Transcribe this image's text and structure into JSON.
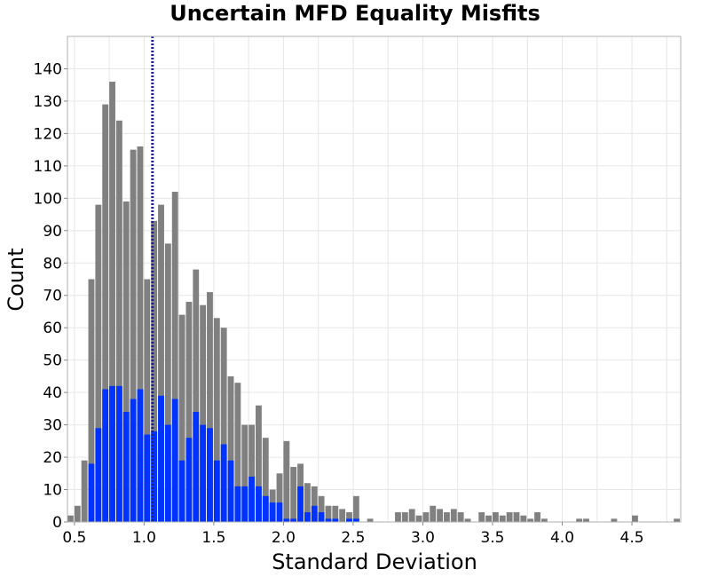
{
  "chart_data": {
    "type": "bar",
    "title": "Uncertain MFD Equality Misfits",
    "xlabel": "Standard Deviation",
    "ylabel": "Count",
    "xlim": [
      0.45,
      4.85
    ],
    "ylim": [
      0,
      150
    ],
    "bin_width": 0.05,
    "x_ticks": [
      "0.5",
      "1.0",
      "1.5",
      "2.0",
      "2.5",
      "3.0",
      "3.5",
      "4.0",
      "4.5"
    ],
    "x_tick_values": [
      0.5,
      1.0,
      1.5,
      2.0,
      2.5,
      3.0,
      3.5,
      4.0,
      4.5
    ],
    "y_ticks": [
      "0",
      "10",
      "20",
      "30",
      "40",
      "50",
      "60",
      "70",
      "80",
      "90",
      "100",
      "110",
      "120",
      "130",
      "140"
    ],
    "y_tick_values": [
      0,
      10,
      20,
      30,
      40,
      50,
      60,
      70,
      80,
      90,
      100,
      110,
      120,
      130,
      140
    ],
    "grid": true,
    "reference_line": {
      "x": 1.06,
      "color": "#1a237e",
      "style": "dotted"
    },
    "series": [
      {
        "color": "#808080",
        "bins": [
          [
            0.45,
            2
          ],
          [
            0.5,
            5
          ],
          [
            0.55,
            19
          ],
          [
            0.6,
            75
          ],
          [
            0.65,
            98
          ],
          [
            0.7,
            129
          ],
          [
            0.75,
            136
          ],
          [
            0.8,
            124
          ],
          [
            0.85,
            99
          ],
          [
            0.9,
            115
          ],
          [
            0.95,
            116
          ],
          [
            1.0,
            75
          ],
          [
            1.05,
            93
          ],
          [
            1.1,
            98
          ],
          [
            1.15,
            86
          ],
          [
            1.2,
            102
          ],
          [
            1.25,
            64
          ],
          [
            1.3,
            68
          ],
          [
            1.35,
            78
          ],
          [
            1.4,
            67
          ],
          [
            1.45,
            71
          ],
          [
            1.5,
            63
          ],
          [
            1.55,
            60
          ],
          [
            1.6,
            45
          ],
          [
            1.65,
            43
          ],
          [
            1.7,
            30
          ],
          [
            1.75,
            30
          ],
          [
            1.8,
            36
          ],
          [
            1.85,
            26
          ],
          [
            1.9,
            10
          ],
          [
            1.95,
            15
          ],
          [
            2.0,
            25
          ],
          [
            2.05,
            17
          ],
          [
            2.1,
            18
          ],
          [
            2.15,
            12
          ],
          [
            2.2,
            11
          ],
          [
            2.25,
            8
          ],
          [
            2.3,
            5
          ],
          [
            2.35,
            5
          ],
          [
            2.4,
            4
          ],
          [
            2.45,
            3
          ],
          [
            2.5,
            8
          ],
          [
            2.6,
            1
          ],
          [
            2.8,
            3
          ],
          [
            2.85,
            3
          ],
          [
            2.9,
            4
          ],
          [
            2.95,
            2
          ],
          [
            3.0,
            3
          ],
          [
            3.05,
            5
          ],
          [
            3.1,
            4
          ],
          [
            3.15,
            3
          ],
          [
            3.2,
            4
          ],
          [
            3.25,
            3
          ],
          [
            3.3,
            1
          ],
          [
            3.4,
            3
          ],
          [
            3.45,
            2
          ],
          [
            3.5,
            3
          ],
          [
            3.55,
            2
          ],
          [
            3.6,
            3
          ],
          [
            3.65,
            3
          ],
          [
            3.7,
            2
          ],
          [
            3.75,
            1
          ],
          [
            3.8,
            3
          ],
          [
            3.85,
            1
          ],
          [
            4.1,
            1
          ],
          [
            4.15,
            1
          ],
          [
            4.35,
            1
          ],
          [
            4.5,
            2
          ],
          [
            4.8,
            1
          ]
        ]
      },
      {
        "color": "#0033ff",
        "bins": [
          [
            0.6,
            18
          ],
          [
            0.65,
            29
          ],
          [
            0.7,
            41
          ],
          [
            0.75,
            42
          ],
          [
            0.8,
            42
          ],
          [
            0.85,
            34
          ],
          [
            0.9,
            38
          ],
          [
            0.95,
            41
          ],
          [
            1.0,
            27
          ],
          [
            1.05,
            28
          ],
          [
            1.1,
            39
          ],
          [
            1.15,
            30
          ],
          [
            1.2,
            38
          ],
          [
            1.25,
            19
          ],
          [
            1.3,
            26
          ],
          [
            1.35,
            34
          ],
          [
            1.4,
            30
          ],
          [
            1.45,
            29
          ],
          [
            1.5,
            19
          ],
          [
            1.55,
            24
          ],
          [
            1.6,
            19
          ],
          [
            1.65,
            11
          ],
          [
            1.7,
            11
          ],
          [
            1.75,
            14
          ],
          [
            1.8,
            11
          ],
          [
            1.85,
            8
          ],
          [
            1.9,
            6
          ],
          [
            1.95,
            6
          ],
          [
            2.0,
            1
          ],
          [
            2.05,
            1
          ],
          [
            2.1,
            11
          ],
          [
            2.15,
            3
          ],
          [
            2.2,
            5
          ],
          [
            2.25,
            3
          ],
          [
            2.3,
            1
          ],
          [
            2.35,
            1
          ],
          [
            2.45,
            1
          ],
          [
            2.5,
            1
          ]
        ]
      }
    ]
  }
}
